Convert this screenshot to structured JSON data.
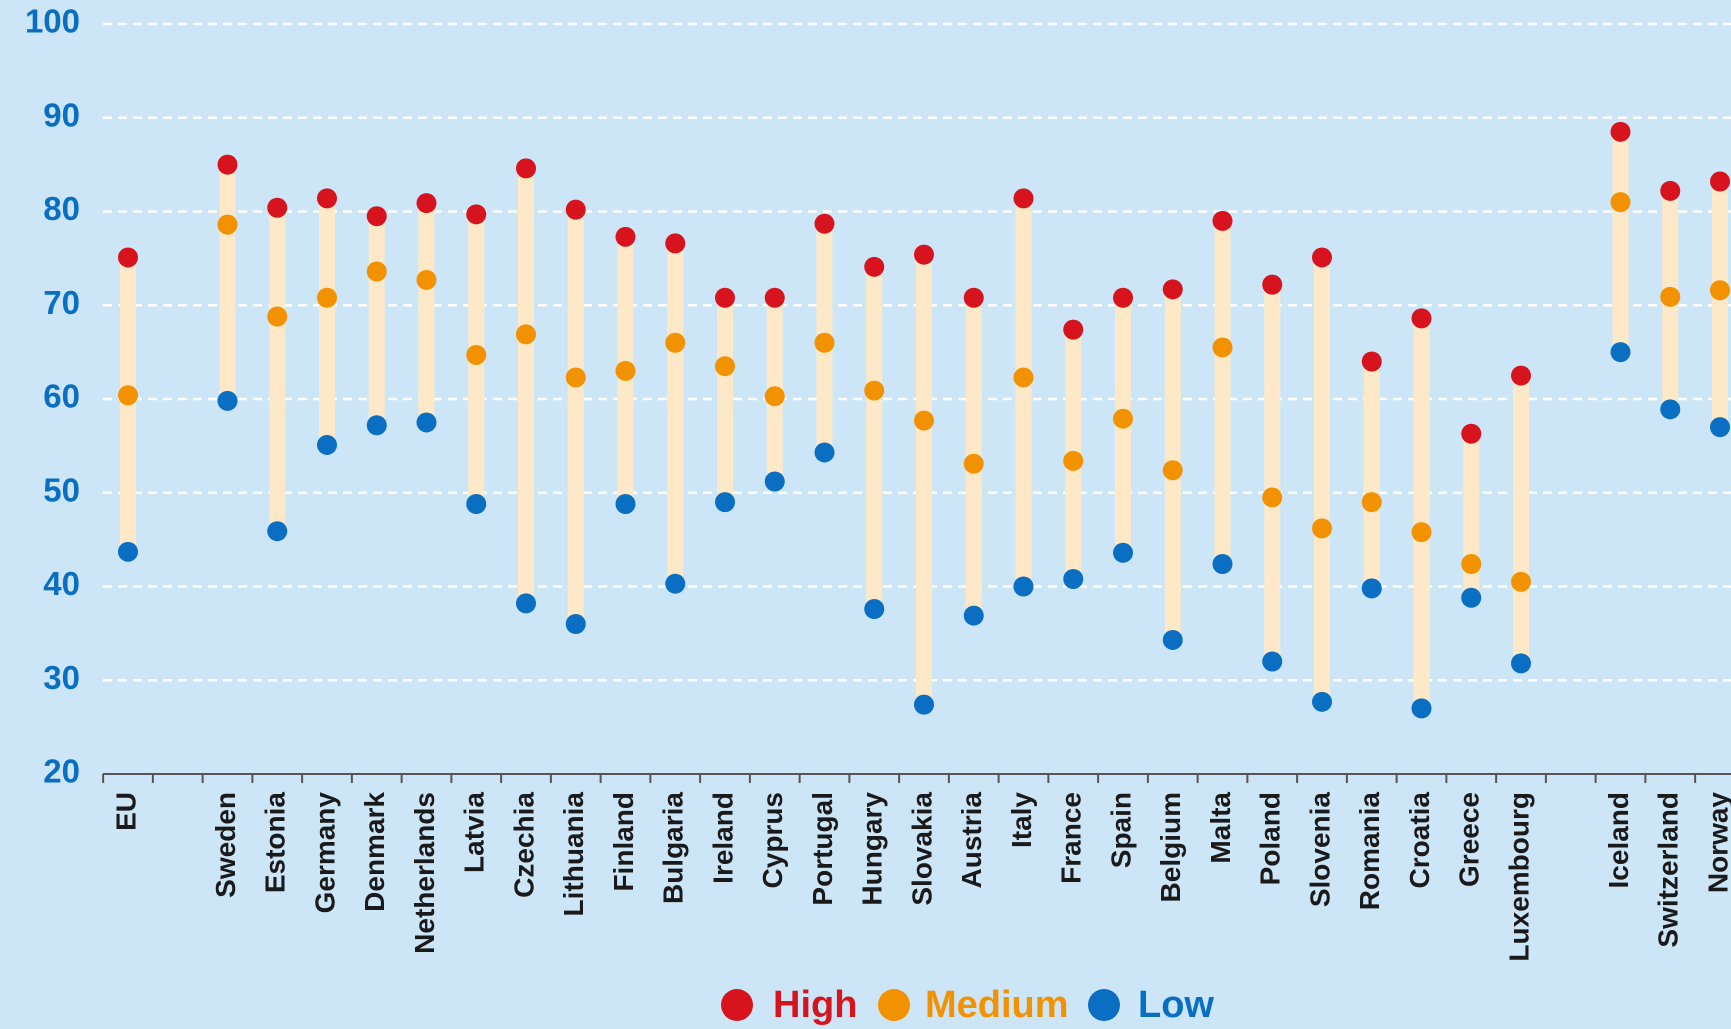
{
  "chart_data": {
    "type": "dumbbell",
    "categories": [
      "EU",
      null,
      "Sweden",
      "Estonia",
      "Germany",
      "Denmark",
      "Netherlands",
      "Latvia",
      "Czechia",
      "Lithuania",
      "Finland",
      "Bulgaria",
      "Ireland",
      "Cyprus",
      "Portugal",
      "Hungary",
      "Slovakia",
      "Austria",
      "Italy",
      "France",
      "Spain",
      "Belgium",
      "Malta",
      "Poland",
      "Slovenia",
      "Romania",
      "Croatia",
      "Greece",
      "Luxembourg",
      null,
      "Iceland",
      "Switzerland",
      "Norway"
    ],
    "series": [
      {
        "name": "High",
        "color": "#d7141e",
        "values": [
          75.1,
          null,
          85.0,
          80.4,
          81.4,
          79.5,
          80.9,
          79.7,
          84.6,
          80.2,
          77.3,
          76.6,
          70.8,
          70.8,
          78.7,
          74.1,
          75.4,
          70.8,
          81.4,
          67.4,
          70.8,
          71.7,
          79.0,
          72.2,
          75.1,
          64.0,
          68.6,
          56.3,
          62.5,
          null,
          88.5,
          82.2,
          83.2
        ]
      },
      {
        "name": "Medium",
        "color": "#f39200",
        "values": [
          60.4,
          null,
          78.6,
          68.8,
          70.8,
          73.6,
          72.7,
          64.7,
          66.9,
          62.3,
          63.0,
          66.0,
          63.5,
          60.3,
          66.0,
          60.9,
          57.7,
          53.1,
          62.3,
          53.4,
          57.9,
          52.4,
          65.5,
          49.5,
          46.2,
          49.0,
          45.8,
          42.4,
          40.5,
          null,
          81.0,
          70.9,
          71.6
        ]
      },
      {
        "name": "Low",
        "color": "#0a6fc2",
        "values": [
          43.7,
          null,
          59.8,
          45.9,
          55.1,
          57.2,
          57.5,
          48.8,
          38.2,
          36.0,
          48.8,
          40.3,
          49.0,
          51.2,
          54.3,
          37.6,
          27.4,
          36.9,
          40.0,
          40.8,
          43.6,
          34.3,
          42.4,
          32.0,
          27.7,
          39.8,
          27.0,
          38.8,
          31.8,
          null,
          65.0,
          58.9,
          57.0
        ]
      }
    ],
    "range_color": "#fde9c8",
    "ylim": [
      20,
      100
    ],
    "yticks": [
      20,
      30,
      40,
      50,
      60,
      70,
      80,
      90,
      100
    ],
    "grid": true
  }
}
